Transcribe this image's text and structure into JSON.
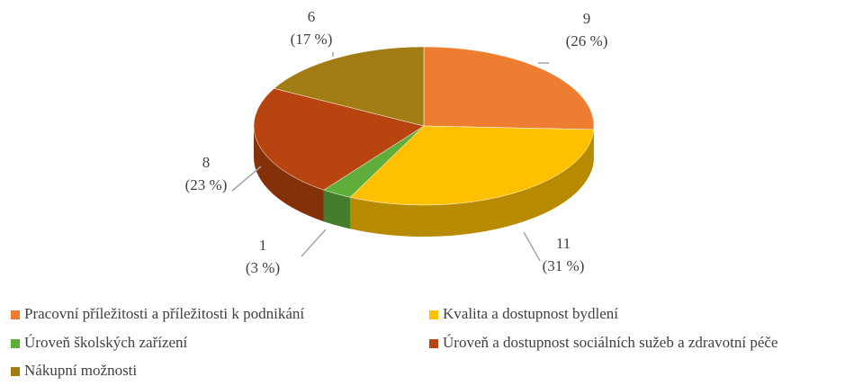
{
  "chart_data": {
    "type": "pie",
    "style": "3d",
    "categories": [
      "Pracovní příležitosti a příležitosti k podnikání",
      "Kvalita a dostupnost bydlení",
      "Úroveň školských zařízení",
      "Úroveň a dostupnost sociálních sužeb a zdravotní péče",
      "Nákupní možnosti"
    ],
    "values": [
      9,
      11,
      1,
      8,
      6
    ],
    "percent_labels": [
      "(26 %)",
      "(31 %)",
      "(3 %)",
      "(23 %)",
      "(17 %)"
    ],
    "colors": [
      "#ed7d31",
      "#ffc000",
      "#5fae3c",
      "#b8450f",
      "#a07c12"
    ],
    "legend": "bottom"
  }
}
